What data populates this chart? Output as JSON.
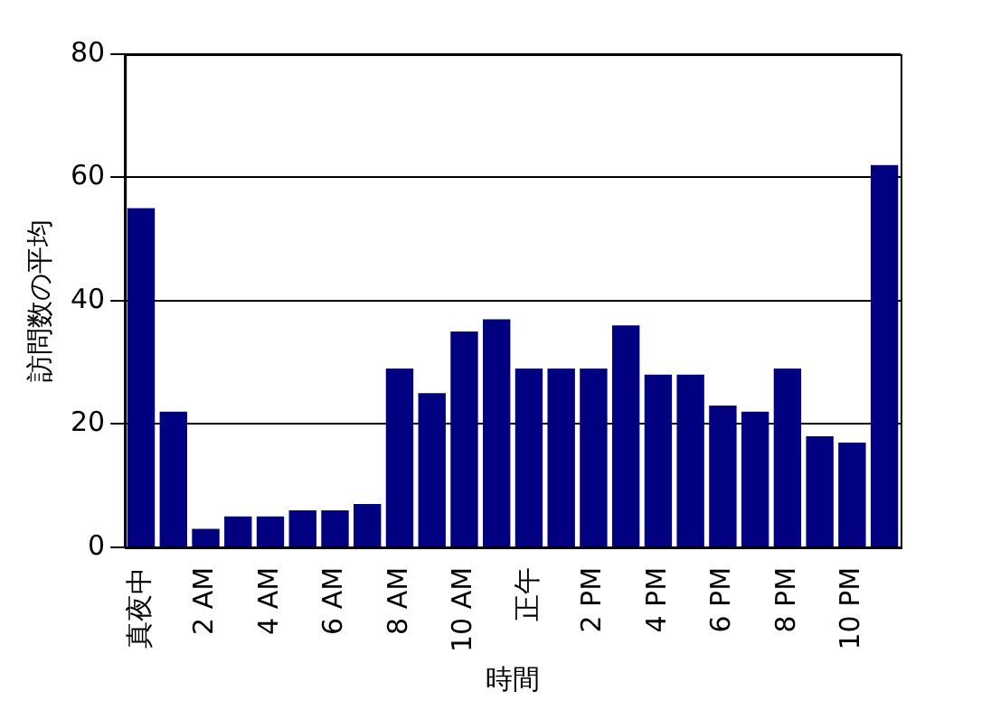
{
  "chart_data": {
    "type": "bar",
    "xlabel": "時間",
    "ylabel": "訪問数の平均",
    "categories": [
      "真夜中",
      null,
      "2 AM",
      null,
      "4 AM",
      null,
      "6 AM",
      null,
      "8 AM",
      null,
      "10 AM",
      null,
      "正午",
      null,
      "2 PM",
      null,
      "4 PM",
      null,
      "6 PM",
      null,
      "8 PM",
      null,
      "10 PM",
      null
    ],
    "values": [
      55,
      22,
      3,
      5,
      5,
      6,
      6,
      7,
      29,
      25,
      35,
      37,
      29,
      29,
      29,
      36,
      28,
      28,
      23,
      22,
      29,
      18,
      17,
      62
    ],
    "color": "#000080",
    "ylim": [
      0,
      80
    ],
    "yticks": [
      0,
      20,
      40,
      60,
      80
    ],
    "grid": "y"
  }
}
